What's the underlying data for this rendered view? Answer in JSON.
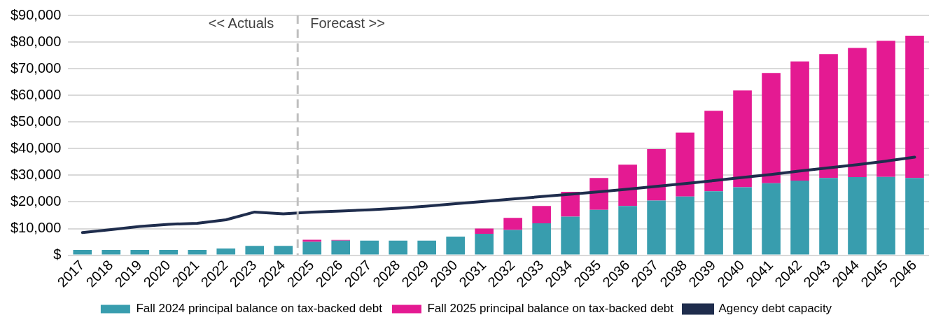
{
  "chart_data": {
    "type": "bar",
    "stacked": true,
    "categories": [
      "2017",
      "2018",
      "2019",
      "2020",
      "2021",
      "2022",
      "2023",
      "2024",
      "2025",
      "2026",
      "2027",
      "2028",
      "2029",
      "2030",
      "2031",
      "2032",
      "2033",
      "2034",
      "2035",
      "2036",
      "2037",
      "2038",
      "2039",
      "2040",
      "2041",
      "2042",
      "2043",
      "2044",
      "2045",
      "2046"
    ],
    "series": [
      {
        "name": "Fall 2024 principal balance on tax-backed debt",
        "color": "#389dae",
        "values": [
          2000,
          2000,
          2000,
          2000,
          2000,
          2500,
          3500,
          3500,
          5000,
          5500,
          5500,
          5500,
          5500,
          7000,
          8000,
          9500,
          12000,
          14500,
          17000,
          18500,
          20500,
          22000,
          24000,
          25500,
          27000,
          28000,
          29000,
          29300,
          29400,
          29000
        ]
      },
      {
        "name": "Fall 2025 principal balance on tax-backed debt",
        "color": "#e41a92",
        "values": [
          0,
          0,
          0,
          0,
          0,
          0,
          0,
          0,
          800,
          200,
          null,
          0,
          0,
          null,
          2000,
          4500,
          6500,
          9300,
          12000,
          15500,
          19300,
          24000,
          30200,
          36300,
          41400,
          44700,
          46500,
          48500,
          51100,
          53400
        ]
      },
      {
        "name": "Agency debt capacity",
        "type": "line",
        "color": "#1f2d4d",
        "marker": "none",
        "line_style": "solid",
        "values": [
          8500,
          9600,
          10800,
          11600,
          12000,
          13300,
          16200,
          15500,
          16200,
          16600,
          17000,
          17600,
          18400,
          19300,
          20200,
          21100,
          22000,
          22900,
          23800,
          24800,
          25800,
          26900,
          28000,
          29200,
          30300,
          31600,
          32800,
          34000,
          35300,
          36800
        ]
      }
    ],
    "ylim": [
      0,
      90000
    ],
    "yticks": [
      {
        "value": 0,
        "label": "$"
      },
      {
        "value": 10000,
        "label": "$10,000"
      },
      {
        "value": 20000,
        "label": "$20,000"
      },
      {
        "value": 30000,
        "label": "$30,000"
      },
      {
        "value": 40000,
        "label": "$40,000"
      },
      {
        "value": 50000,
        "label": "$50,000"
      },
      {
        "value": 60000,
        "label": "$60,000"
      },
      {
        "value": 70000,
        "label": "$70,000"
      },
      {
        "value": 80000,
        "label": "$80,000"
      },
      {
        "value": 90000,
        "label": "$90,000"
      }
    ],
    "grid": "y",
    "legend": "bottom",
    "ref_lines": [
      {
        "axis": "x",
        "value": "2025",
        "color": "#bfbfbf",
        "line_style": "dashed"
      }
    ],
    "annotations": [
      "<< Actuals",
      "Forecast >>"
    ]
  }
}
